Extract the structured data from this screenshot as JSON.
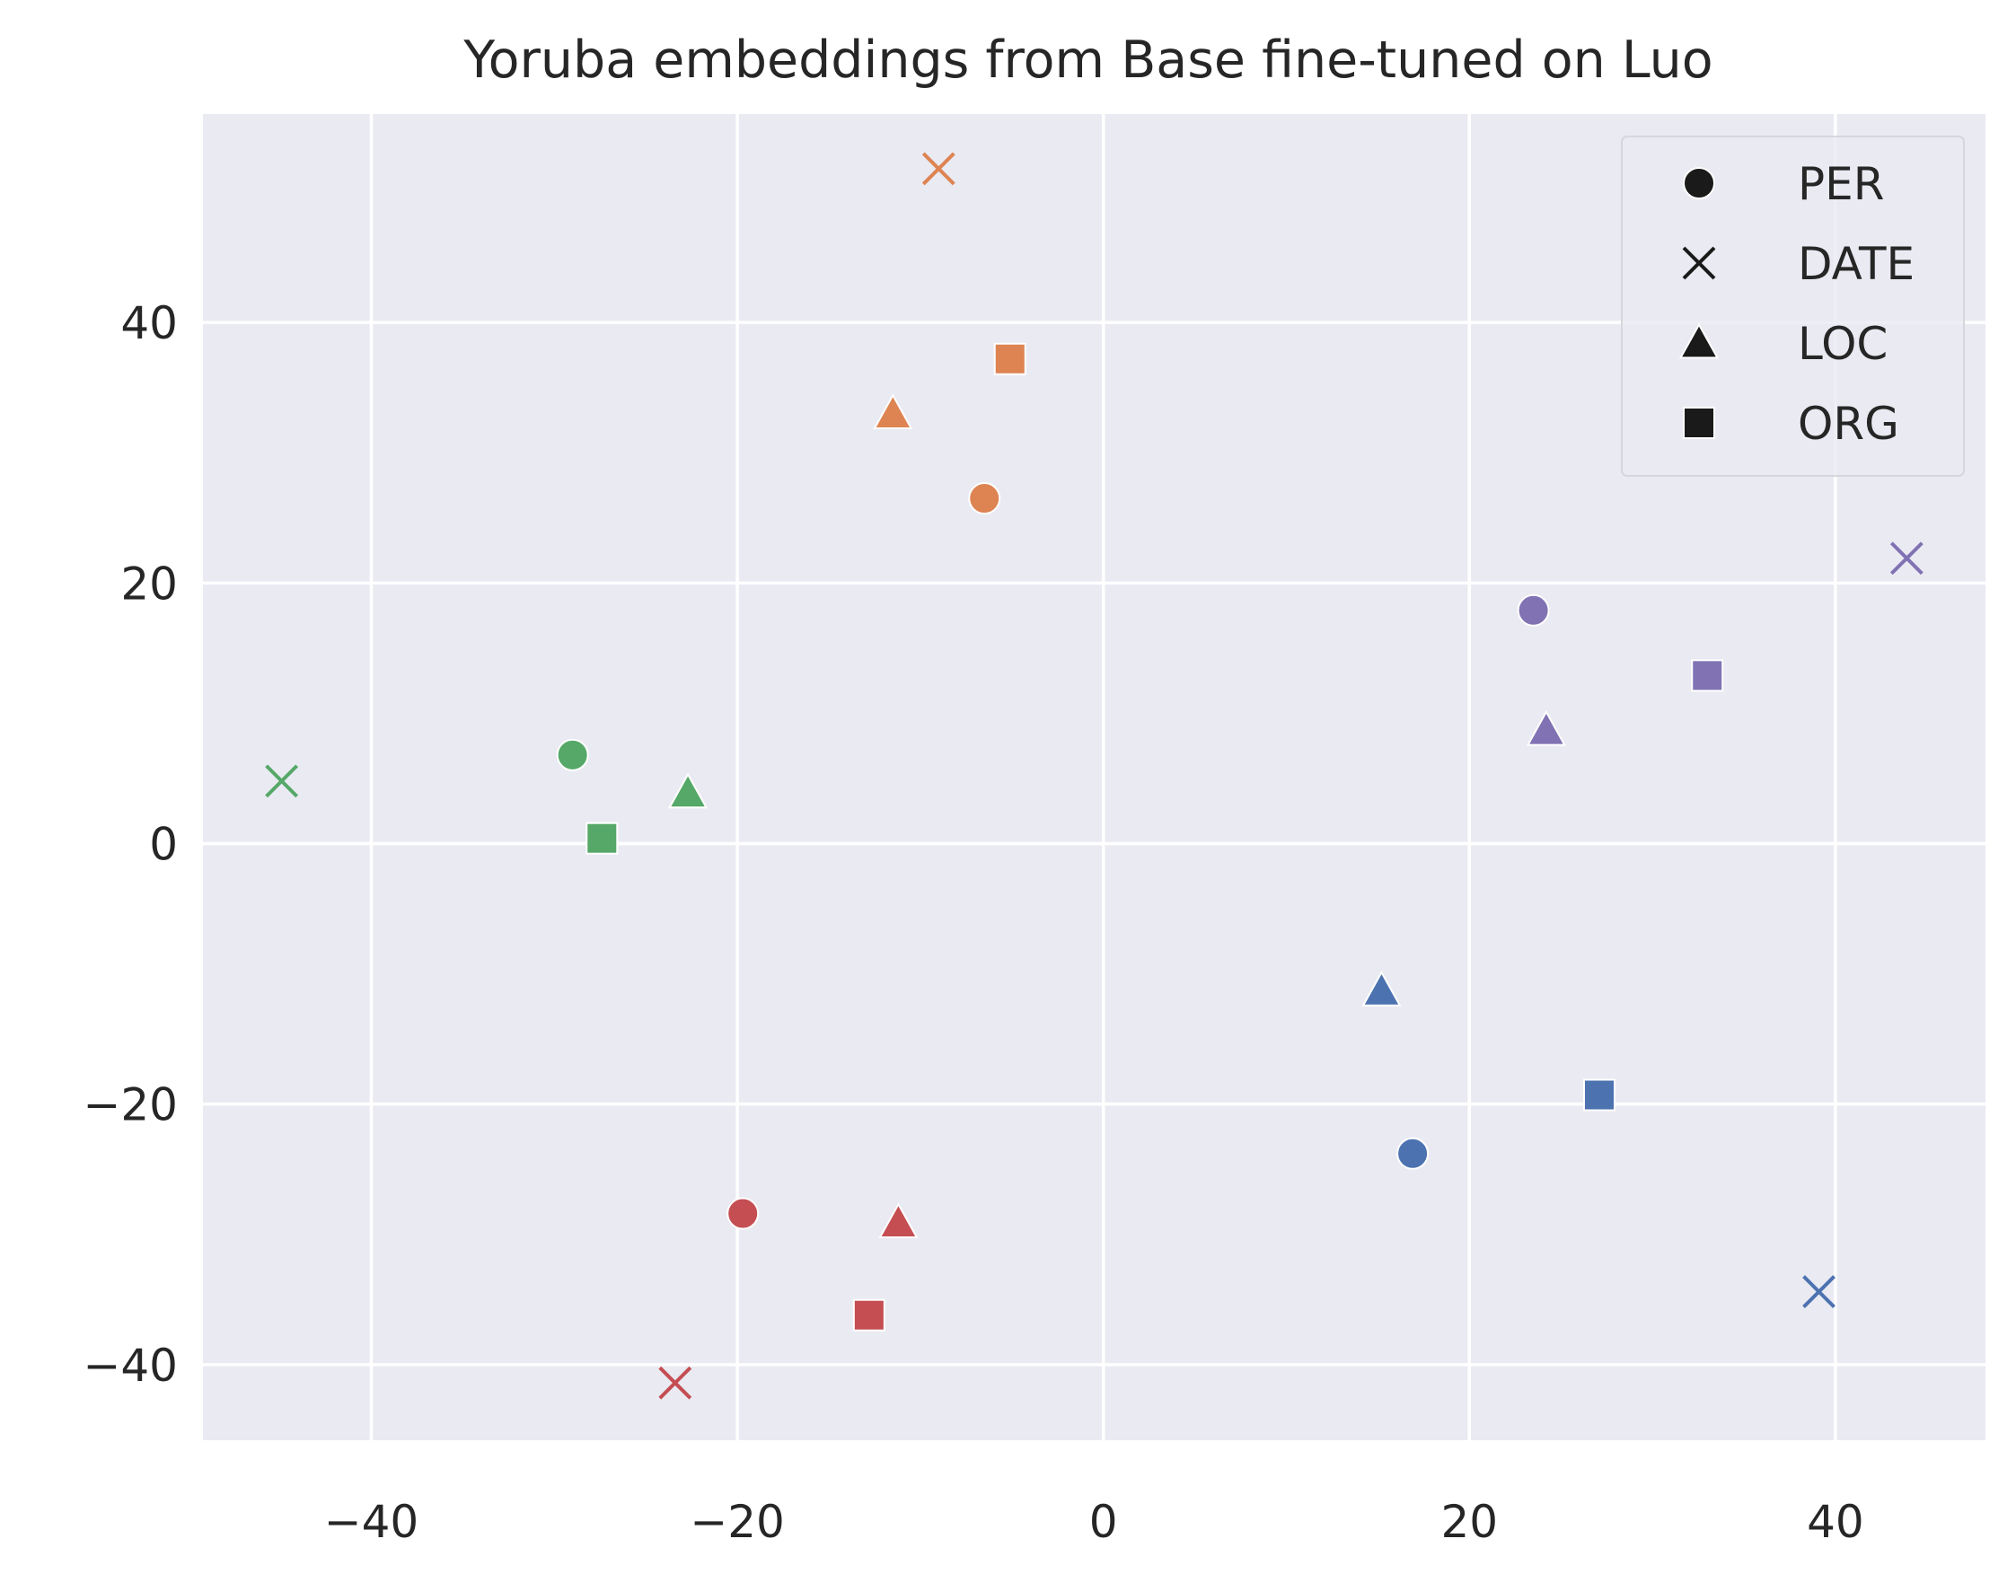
{
  "chart_data": {
    "type": "scatter",
    "title": "Yoruba embeddings from Base fine-tuned on Luo",
    "xlabel": "",
    "ylabel": "",
    "xlim": [
      -49.2,
      48.2
    ],
    "ylim": [
      -45.8,
      56.0
    ],
    "xticks": [
      -40,
      -20,
      0,
      20,
      40
    ],
    "yticks": [
      -40,
      -20,
      0,
      20,
      40
    ],
    "xtick_labels": [
      "−40",
      "−20",
      "0",
      "20",
      "40"
    ],
    "ytick_labels": [
      "−40",
      "−20",
      "0",
      "20",
      "40"
    ],
    "grid": true,
    "legend_position": "top-right",
    "marker_legend": [
      {
        "label": "PER",
        "marker": "circle"
      },
      {
        "label": "DATE",
        "marker": "x"
      },
      {
        "label": "LOC",
        "marker": "triangle"
      },
      {
        "label": "ORG",
        "marker": "square"
      }
    ],
    "points": [
      {
        "x": -6.5,
        "y": 26.5,
        "marker": "circle",
        "color": "#dd8452"
      },
      {
        "x": -9.0,
        "y": 51.8,
        "marker": "x",
        "color": "#dd8452"
      },
      {
        "x": -11.5,
        "y": 33.0,
        "marker": "triangle",
        "color": "#dd8452"
      },
      {
        "x": -5.1,
        "y": 37.2,
        "marker": "square",
        "color": "#dd8452"
      },
      {
        "x": 23.5,
        "y": 17.9,
        "marker": "circle",
        "color": "#8172b3"
      },
      {
        "x": 43.9,
        "y": 21.9,
        "marker": "x",
        "color": "#8172b3"
      },
      {
        "x": 24.2,
        "y": 8.7,
        "marker": "triangle",
        "color": "#8172b3"
      },
      {
        "x": 33.0,
        "y": 12.9,
        "marker": "square",
        "color": "#8172b3"
      },
      {
        "x": -29.0,
        "y": 6.8,
        "marker": "circle",
        "color": "#55a868"
      },
      {
        "x": -44.9,
        "y": 4.8,
        "marker": "x",
        "color": "#55a868"
      },
      {
        "x": -22.7,
        "y": 3.9,
        "marker": "triangle",
        "color": "#55a868"
      },
      {
        "x": -27.4,
        "y": 0.4,
        "marker": "square",
        "color": "#55a868"
      },
      {
        "x": 16.9,
        "y": -23.8,
        "marker": "circle",
        "color": "#4c72b0"
      },
      {
        "x": 39.1,
        "y": -34.4,
        "marker": "x",
        "color": "#4c72b0"
      },
      {
        "x": 15.2,
        "y": -11.3,
        "marker": "triangle",
        "color": "#4c72b0"
      },
      {
        "x": 27.1,
        "y": -19.3,
        "marker": "square",
        "color": "#4c72b0"
      },
      {
        "x": -19.7,
        "y": -28.4,
        "marker": "circle",
        "color": "#c44e52"
      },
      {
        "x": -23.4,
        "y": -41.4,
        "marker": "x",
        "color": "#c44e52"
      },
      {
        "x": -11.2,
        "y": -29.1,
        "marker": "triangle",
        "color": "#c44e52"
      },
      {
        "x": -12.8,
        "y": -36.2,
        "marker": "square",
        "color": "#c44e52"
      }
    ]
  },
  "colors": {
    "plot_background": "#eaeaf2",
    "grid": "#ffffff",
    "text": "#262626",
    "legend_marker": "#1a1a1a"
  }
}
